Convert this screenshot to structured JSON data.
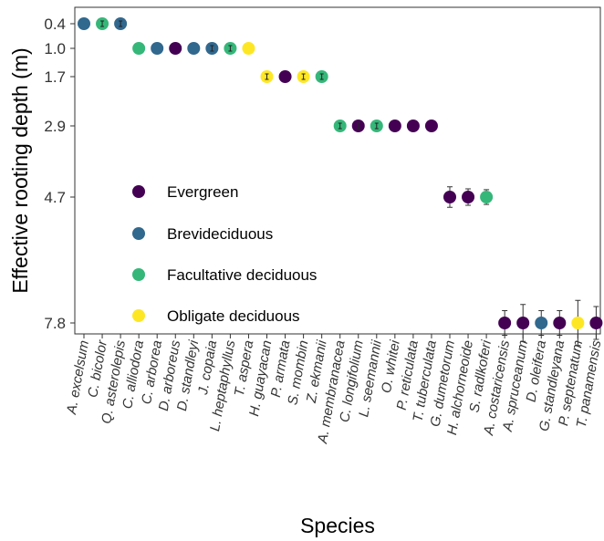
{
  "chart_data": {
    "type": "scatter",
    "xlabel": "Species",
    "ylabel": "Effective rooting depth (m)",
    "y_ticks": [
      "0.4",
      "1.0",
      "1.7",
      "2.9",
      "4.7",
      "7.8"
    ],
    "y_scale": "reversed, nonlinear (ticks spaced per plotted value)",
    "grid": false,
    "legend_position": "inside-left",
    "legend": [
      {
        "name": "Evergreen",
        "color": "#440154"
      },
      {
        "name": "Brevideciduous",
        "color": "#31688e"
      },
      {
        "name": "Facultative deciduous",
        "color": "#35b779"
      },
      {
        "name": "Obligate deciduous",
        "color": "#fde725"
      }
    ],
    "points": [
      {
        "species": "A. excelsum",
        "y": 0.4,
        "group": "Brevideciduous",
        "err": 0.0
      },
      {
        "species": "C. bicolor",
        "y": 0.4,
        "group": "Facultative deciduous",
        "err": 0.02
      },
      {
        "species": "Q. asterolepis",
        "y": 0.4,
        "group": "Brevideciduous",
        "err": 0.02
      },
      {
        "species": "C. alliodora",
        "y": 1.0,
        "group": "Facultative deciduous",
        "err": 0.0
      },
      {
        "species": "C. arborea",
        "y": 1.0,
        "group": "Brevideciduous",
        "err": 0.0
      },
      {
        "species": "D. arboreus",
        "y": 1.0,
        "group": "Evergreen",
        "err": 0.0
      },
      {
        "species": "D. standleyi",
        "y": 1.0,
        "group": "Brevideciduous",
        "err": 0.0
      },
      {
        "species": "J. copaia",
        "y": 1.0,
        "group": "Brevideciduous",
        "err": 0.02
      },
      {
        "species": "L. heptaphyllus",
        "y": 1.0,
        "group": "Facultative deciduous",
        "err": 0.02
      },
      {
        "species": "T. aspera",
        "y": 1.0,
        "group": "Obligate deciduous",
        "err": 0.0
      },
      {
        "species": "H. guayacan",
        "y": 1.7,
        "group": "Obligate deciduous",
        "err": 0.03
      },
      {
        "species": "P. armata",
        "y": 1.7,
        "group": "Evergreen",
        "err": 0.0
      },
      {
        "species": "S. mombin",
        "y": 1.7,
        "group": "Obligate deciduous",
        "err": 0.04
      },
      {
        "species": "Z. ekmanii",
        "y": 1.7,
        "group": "Facultative deciduous",
        "err": 0.04
      },
      {
        "species": "A. membranacea",
        "y": 2.9,
        "group": "Facultative deciduous",
        "err": 0.05
      },
      {
        "species": "C. longifolium",
        "y": 2.9,
        "group": "Evergreen",
        "err": 0.1
      },
      {
        "species": "L. seemannii",
        "y": 2.9,
        "group": "Facultative deciduous",
        "err": 0.03
      },
      {
        "species": "O. whitei",
        "y": 2.9,
        "group": "Evergreen",
        "err": 0.0
      },
      {
        "species": "P. reticulata",
        "y": 2.9,
        "group": "Evergreen",
        "err": 0.0
      },
      {
        "species": "T. tuberculata",
        "y": 2.9,
        "group": "Evergreen",
        "err": 0.0
      },
      {
        "species": "G. dumetorum",
        "y": 4.7,
        "group": "Evergreen",
        "err": 0.25
      },
      {
        "species": "H. alchorneoide",
        "y": 4.7,
        "group": "Evergreen",
        "err": 0.2
      },
      {
        "species": "S. radlkoferi",
        "y": 4.7,
        "group": "Facultative deciduous",
        "err": 0.18
      },
      {
        "species": "A. costaricensis",
        "y": 7.8,
        "group": "Evergreen",
        "err": 0.3
      },
      {
        "species": "A. spruceanum",
        "y": 7.8,
        "group": "Evergreen",
        "err": 0.45
      },
      {
        "species": "D. oleifera",
        "y": 7.8,
        "group": "Brevideciduous",
        "err": 0.3
      },
      {
        "species": "G. standleyana",
        "y": 7.8,
        "group": "Evergreen",
        "err": 0.3
      },
      {
        "species": "P. septenatum",
        "y": 7.8,
        "group": "Obligate deciduous",
        "err": 0.55
      },
      {
        "species": "T. panamensis",
        "y": 7.8,
        "group": "Evergreen",
        "err": 0.4
      }
    ]
  }
}
